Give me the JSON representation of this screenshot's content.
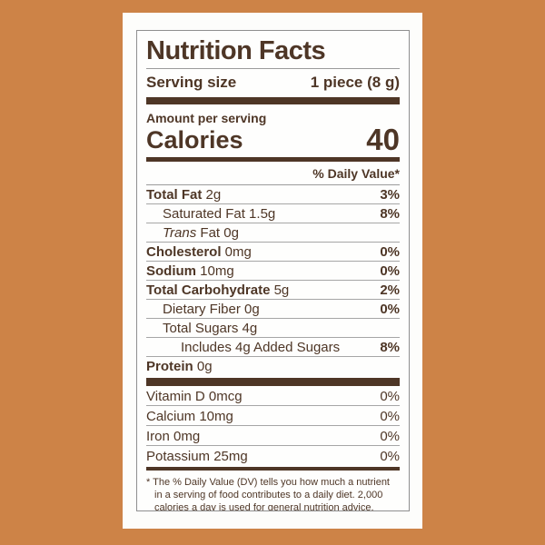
{
  "colors": {
    "background": "#cd8347",
    "panel": "#fdfdfb",
    "text_brown": "#4e3626",
    "hairline_gray": "#a6a6a6",
    "box_border_gray": "#8f8f8f"
  },
  "label": {
    "title": "Nutrition Facts",
    "serving_size_label": "Serving size",
    "serving_size_value": "1 piece (8 g)",
    "amount_per_serving": "Amount per serving",
    "calories_label": "Calories",
    "calories_value": "40",
    "daily_value_header": "% Daily Value*",
    "nutrients": [
      {
        "parts": [
          {
            "t": "Total Fat",
            "s": "b"
          },
          {
            "t": " 2g",
            "s": "r"
          }
        ],
        "indent": 0,
        "dv": "3%"
      },
      {
        "parts": [
          {
            "t": "Saturated Fat 1.5g",
            "s": "r"
          }
        ],
        "indent": 1,
        "dv": "8%"
      },
      {
        "parts": [
          {
            "t": "Trans",
            "s": "i"
          },
          {
            "t": " Fat 0g",
            "s": "r"
          }
        ],
        "indent": 1,
        "dv": ""
      },
      {
        "parts": [
          {
            "t": "Cholesterol",
            "s": "b"
          },
          {
            "t": " 0mg",
            "s": "r"
          }
        ],
        "indent": 0,
        "dv": "0%"
      },
      {
        "parts": [
          {
            "t": "Sodium",
            "s": "b"
          },
          {
            "t": " 10mg",
            "s": "r"
          }
        ],
        "indent": 0,
        "dv": "0%"
      },
      {
        "parts": [
          {
            "t": "Total Carbohydrate",
            "s": "b"
          },
          {
            "t": " 5g",
            "s": "r"
          }
        ],
        "indent": 0,
        "dv": "2%"
      },
      {
        "parts": [
          {
            "t": "Dietary Fiber 0g",
            "s": "r"
          }
        ],
        "indent": 1,
        "dv": "0%"
      },
      {
        "parts": [
          {
            "t": "Total Sugars 4g",
            "s": "r"
          }
        ],
        "indent": 1,
        "dv": ""
      },
      {
        "parts": [
          {
            "t": "Includes 4g Added Sugars",
            "s": "r"
          }
        ],
        "indent": 2,
        "dv": "8%"
      },
      {
        "parts": [
          {
            "t": "Protein",
            "s": "b"
          },
          {
            "t": " 0g",
            "s": "r"
          }
        ],
        "indent": 0,
        "dv": ""
      }
    ],
    "vitamins": [
      {
        "name": "Vitamin D 0mcg",
        "dv": "0%"
      },
      {
        "name": "Calcium 10mg",
        "dv": "0%"
      },
      {
        "name": "Iron 0mg",
        "dv": "0%"
      },
      {
        "name": "Potassium 25mg",
        "dv": "0%"
      }
    ],
    "footnote": "* The % Daily Value (DV) tells you how much a nutrient in a serving of food contributes to a daily diet. 2,000 calories a day is used for general nutrition advice."
  }
}
